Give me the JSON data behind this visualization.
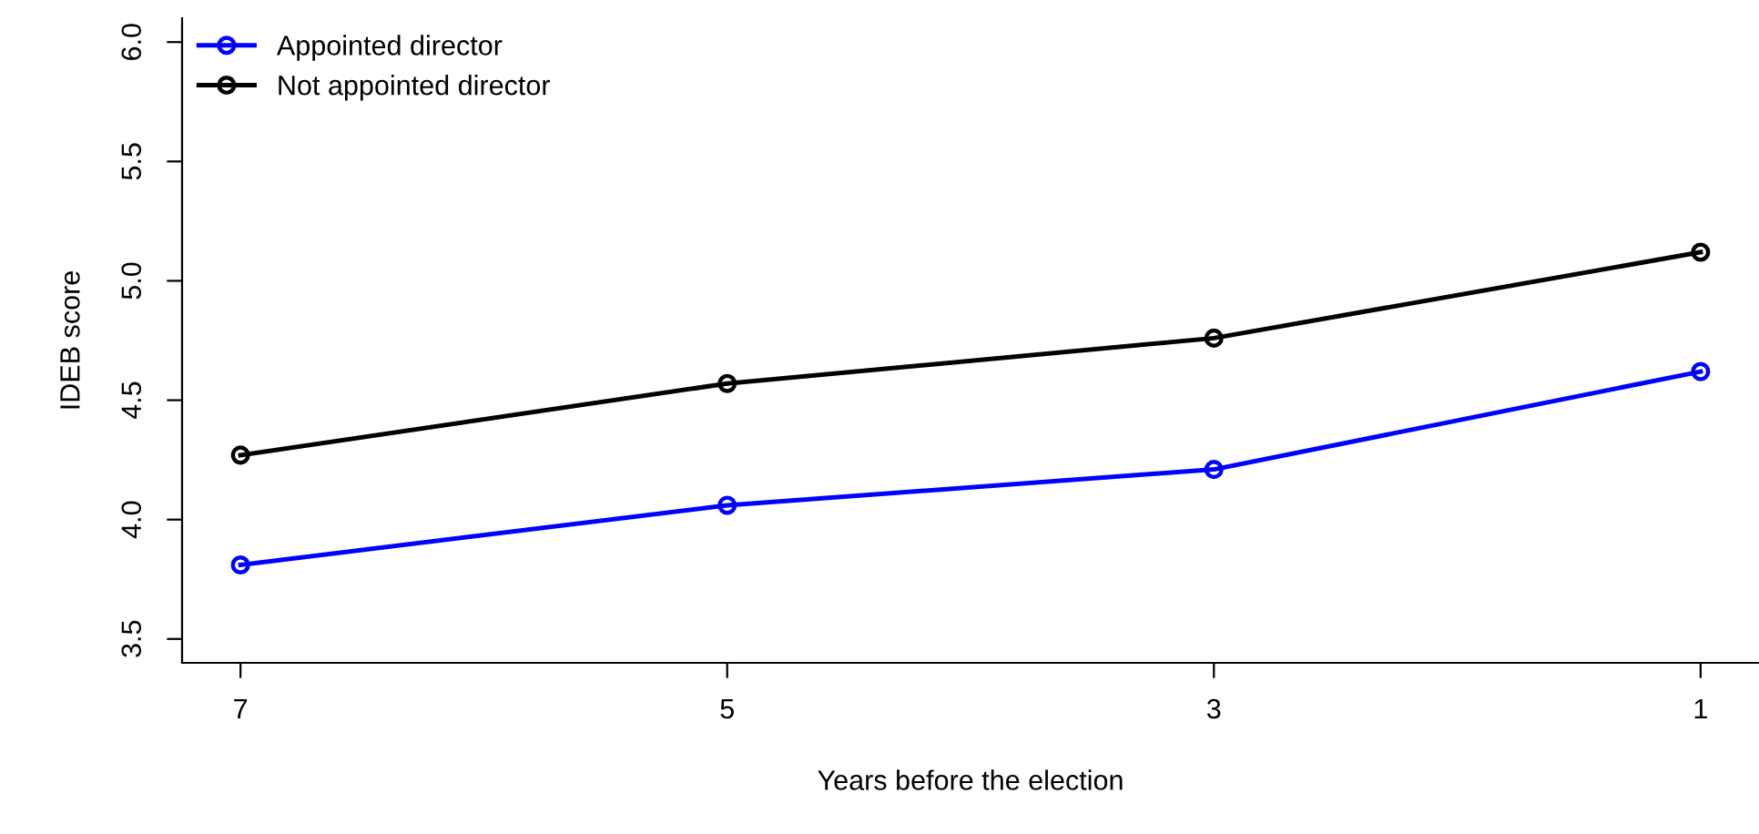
{
  "chart_data": {
    "type": "line",
    "xlabel": "Years before the election",
    "ylabel": "IDEB score",
    "x": [
      7,
      5,
      3,
      1
    ],
    "series": [
      {
        "name": "Appointed director",
        "color": "#0000ff",
        "values": [
          3.81,
          4.06,
          4.21,
          4.62
        ]
      },
      {
        "name": "Not appointed director",
        "color": "#000000",
        "values": [
          4.27,
          4.57,
          4.76,
          5.12
        ]
      }
    ],
    "xlim": [
      7.24,
      0.76
    ],
    "xticks": [
      7,
      5,
      3,
      1
    ],
    "ylim": [
      3.4,
      6.1
    ],
    "yticks": [
      3.5,
      {
        "value": 4,
        "label": "4.0"
      },
      4.5,
      {
        "value": 5,
        "label": "5.0"
      },
      5.5,
      {
        "value": 6,
        "label": "6.0"
      }
    ],
    "marker": "circle",
    "line_style": "solid",
    "grid": false,
    "legend": "top left"
  }
}
